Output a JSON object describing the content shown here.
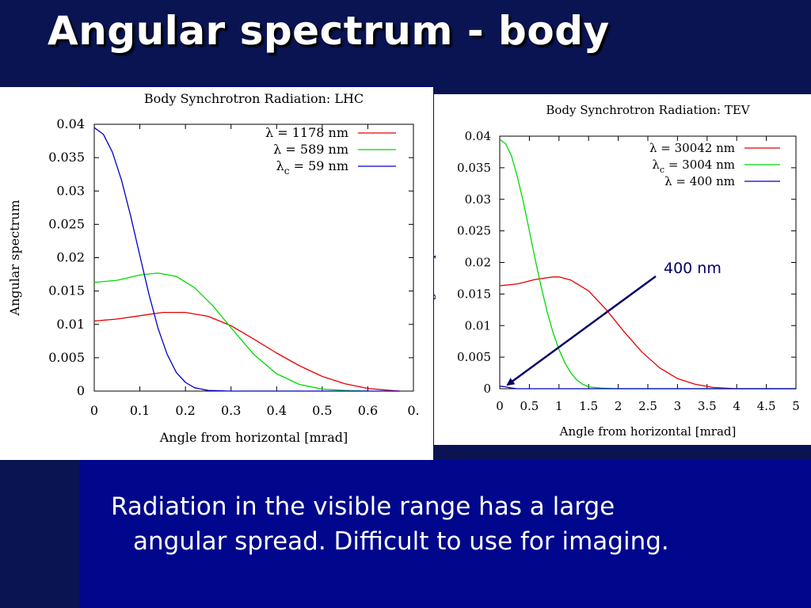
{
  "slide": {
    "title": "Angular spectrum - body",
    "caption_line1": "Radiation in the visible range has a large",
    "caption_line2": "angular spread. Difficult to use for imaging.",
    "annotation": "400 nm"
  },
  "colors": {
    "background": "#000a7a",
    "series_red": "#e60000",
    "series_green": "#00d900",
    "series_blue": "#0000cc",
    "arrow": "#000066"
  },
  "chart_data": [
    {
      "type": "line",
      "title": "Body Synchrotron Radiation: LHC",
      "xlabel": "Angle from horizontal [mrad]",
      "ylabel": "Angular spectrum",
      "xlim": [
        0,
        0.7
      ],
      "ylim": [
        0,
        0.04
      ],
      "xticks": [
        "0",
        "0.1",
        "0.2",
        "0.3",
        "0.4",
        "0.5",
        "0.6",
        "0."
      ],
      "yticks": [
        "0",
        "0.005",
        "0.01",
        "0.015",
        "0.02",
        "0.025",
        "0.03",
        "0.035",
        "0.04"
      ],
      "legend_position": "top-right",
      "series": [
        {
          "name": "λ = 1178 nm",
          "legend_main": "λ = 1178 nm",
          "legend_sub": "",
          "legend_rest": "",
          "color": "#e60000",
          "x": [
            0,
            0.05,
            0.1,
            0.15,
            0.2,
            0.25,
            0.3,
            0.35,
            0.4,
            0.45,
            0.5,
            0.55,
            0.6,
            0.65,
            0.67
          ],
          "y": [
            0.0105,
            0.0108,
            0.0113,
            0.0118,
            0.0118,
            0.0112,
            0.0098,
            0.0078,
            0.0057,
            0.0038,
            0.0022,
            0.0011,
            0.0004,
            0.0001,
            0.0
          ]
        },
        {
          "name": "λ = 589 nm",
          "legend_main": "λ = 589 nm",
          "legend_sub": "",
          "legend_rest": "",
          "color": "#00d900",
          "x": [
            0,
            0.05,
            0.1,
            0.14,
            0.18,
            0.22,
            0.26,
            0.3,
            0.35,
            0.4,
            0.45,
            0.5,
            0.55,
            0.6
          ],
          "y": [
            0.0163,
            0.0166,
            0.0174,
            0.0177,
            0.0172,
            0.0155,
            0.0128,
            0.0095,
            0.0055,
            0.0026,
            0.001,
            0.0003,
            0.0001,
            0.0
          ]
        },
        {
          "name": "λc = 59 nm",
          "legend_main": "λ",
          "legend_sub": "c",
          "legend_rest": " = 59 nm",
          "color": "#0000cc",
          "x": [
            0,
            0.02,
            0.04,
            0.06,
            0.08,
            0.1,
            0.12,
            0.14,
            0.16,
            0.18,
            0.2,
            0.22,
            0.25,
            0.3,
            0.67
          ],
          "y": [
            0.0395,
            0.0385,
            0.0358,
            0.0316,
            0.0262,
            0.0203,
            0.0145,
            0.0094,
            0.0055,
            0.0028,
            0.0013,
            0.0005,
            0.0001,
            0.0,
            0.0
          ]
        }
      ]
    },
    {
      "type": "line",
      "title": "Body Synchrotron Radiation: TEV",
      "xlabel": "Angle from horizontal [mrad]",
      "ylabel": "Angular spectrum",
      "xlim": [
        0,
        5
      ],
      "ylim": [
        0,
        0.04
      ],
      "xticks": [
        "0",
        "0.5",
        "1",
        "1.5",
        "2",
        "2.5",
        "3",
        "3.5",
        "4",
        "4.5",
        "5"
      ],
      "yticks": [
        "0",
        "0.005",
        "0.01",
        "0.015",
        "0.02",
        "0.025",
        "0.03",
        "0.035",
        "0.04"
      ],
      "legend_position": "top-right",
      "series": [
        {
          "name": "λ = 30042 nm",
          "legend_main": "λ = 30042 nm",
          "legend_sub": "",
          "legend_rest": "",
          "color": "#e60000",
          "x": [
            0,
            0.3,
            0.6,
            0.9,
            1.0,
            1.2,
            1.5,
            1.8,
            2.1,
            2.4,
            2.7,
            3.0,
            3.3,
            3.6,
            4.0,
            4.5,
            5.0
          ],
          "y": [
            0.0163,
            0.0166,
            0.0173,
            0.0177,
            0.0177,
            0.0172,
            0.0155,
            0.0125,
            0.009,
            0.0058,
            0.0033,
            0.0016,
            0.0007,
            0.0002,
            0.0,
            0.0,
            0.0
          ]
        },
        {
          "name": "λc = 3004 nm",
          "legend_main": "λ",
          "legend_sub": "c",
          "legend_rest": " = 3004 nm",
          "color": "#00d900",
          "x": [
            0,
            0.1,
            0.2,
            0.3,
            0.4,
            0.5,
            0.6,
            0.7,
            0.8,
            0.9,
            1.0,
            1.1,
            1.2,
            1.3,
            1.4,
            1.5,
            1.7,
            2.0,
            5.0
          ],
          "y": [
            0.0395,
            0.0388,
            0.0368,
            0.0335,
            0.0295,
            0.025,
            0.0204,
            0.0161,
            0.0122,
            0.0089,
            0.0062,
            0.0041,
            0.0025,
            0.0014,
            0.0007,
            0.0003,
            0.0001,
            0.0,
            0.0
          ]
        },
        {
          "name": "λ = 400 nm",
          "legend_main": "λ = 400 nm",
          "legend_sub": "",
          "legend_rest": "",
          "color": "#0000cc",
          "x": [
            0,
            0.1,
            0.2,
            0.3,
            0.4,
            5.0
          ],
          "y": [
            0.0004,
            0.0003,
            0.0001,
            0.0,
            0.0,
            0.0
          ]
        }
      ]
    }
  ]
}
